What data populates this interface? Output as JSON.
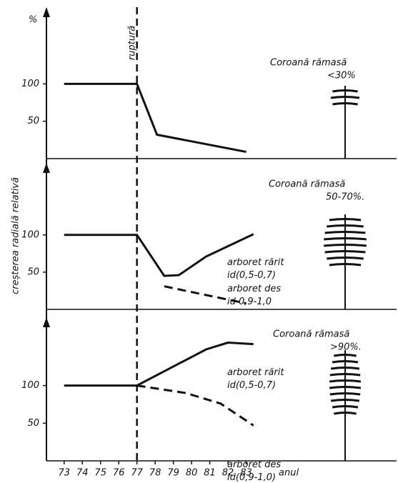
{
  "figure": {
    "unit": "%",
    "y_label": "creșterea radială relativă",
    "x_label": "anul",
    "event_label": "ruptură",
    "event_x": 77
  },
  "chart_data": [
    {
      "type": "line",
      "xlim": [
        72.5,
        84
      ],
      "ylim": [
        0,
        195
      ],
      "yticks": [
        50,
        100
      ],
      "annotation": [
        "Coroană rămasă",
        "<30%"
      ],
      "series": [
        {
          "color": "#111111",
          "dashed": false,
          "x": [
            73,
            77,
            78.1,
            83
          ],
          "values": [
            100,
            100,
            32,
            9
          ]
        }
      ]
    },
    {
      "type": "line",
      "xlim": [
        72.5,
        84
      ],
      "ylim": [
        0,
        190
      ],
      "yticks": [
        50,
        100
      ],
      "annotation": [
        "Coroană rămasă",
        "50-70%."
      ],
      "series": [
        {
          "name": "arboret rărit",
          "note": "id(0,5-0,7)",
          "color": "#111111",
          "dashed": false,
          "x": [
            73,
            77,
            78.5,
            79.3,
            80.8,
            83.4
          ],
          "values": [
            100,
            100,
            45,
            46,
            71,
            101
          ]
        },
        {
          "name": "arboret des",
          "note": "id 0,9-1,0",
          "color": "#111111",
          "dashed": true,
          "x": [
            78.5,
            83
          ],
          "values": [
            31,
            8
          ]
        }
      ]
    },
    {
      "type": "line",
      "xlim": [
        72.5,
        84
      ],
      "ylim": [
        0,
        185
      ],
      "yticks": [
        50,
        100
      ],
      "xticks": [
        73,
        74,
        75,
        76,
        77,
        78,
        79,
        80,
        81,
        82,
        83
      ],
      "annotation": [
        "Coroană rămasă",
        ">90%."
      ],
      "series": [
        {
          "name": "arboret rărit",
          "note": "id(0,5-0,7)",
          "color": "#111111",
          "dashed": false,
          "x": [
            73,
            77,
            80.8,
            82,
            83.4
          ],
          "values": [
            100,
            100,
            148,
            157,
            155
          ]
        },
        {
          "name": "arboret des",
          "note": "id(0,9-1,0)",
          "color": "#111111",
          "dashed": true,
          "x": [
            77,
            79.7,
            81.6,
            83.4
          ],
          "values": [
            100,
            90,
            76,
            47
          ]
        }
      ]
    }
  ]
}
